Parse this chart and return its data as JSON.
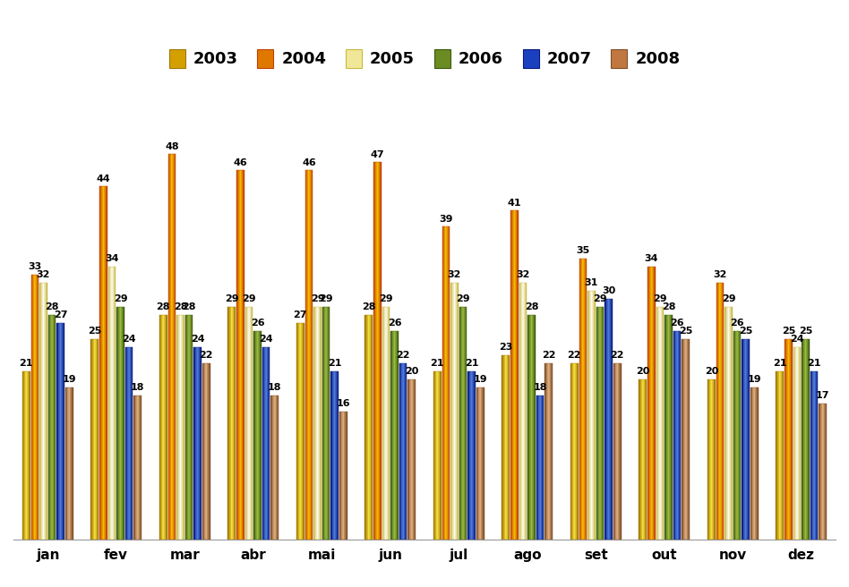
{
  "months": [
    "jan",
    "fev",
    "mar",
    "abr",
    "mai",
    "jun",
    "jul",
    "ago",
    "set",
    "out",
    "nov",
    "dez"
  ],
  "series": {
    "2003": [
      21,
      25,
      28,
      29,
      27,
      28,
      21,
      23,
      22,
      20,
      20,
      21
    ],
    "2004": [
      33,
      44,
      48,
      46,
      46,
      47,
      39,
      41,
      35,
      34,
      32,
      25
    ],
    "2005": [
      32,
      34,
      28,
      29,
      29,
      29,
      32,
      32,
      31,
      29,
      29,
      24
    ],
    "2006": [
      28,
      29,
      28,
      26,
      29,
      26,
      29,
      28,
      29,
      28,
      26,
      25
    ],
    "2007": [
      27,
      24,
      24,
      24,
      21,
      22,
      21,
      18,
      30,
      26,
      25,
      21
    ],
    "2008": [
      19,
      18,
      22,
      18,
      16,
      20,
      19,
      22,
      22,
      25,
      19,
      17
    ]
  },
  "years": [
    "2003",
    "2004",
    "2005",
    "2006",
    "2007",
    "2008"
  ],
  "year_main_colors": {
    "2003": "#D4A000",
    "2004": "#E07800",
    "2005": "#F0E898",
    "2006": "#6B8C22",
    "2007": "#1A40C0",
    "2008": "#C07840"
  },
  "year_light_colors": {
    "2003": "#F8E040",
    "2004": "#F8C000",
    "2005": "#FFFFF8",
    "2006": "#A0C040",
    "2007": "#5080E0",
    "2008": "#E0B080"
  },
  "year_dark_colors": {
    "2003": "#A07800",
    "2004": "#C04000",
    "2005": "#C8B840",
    "2006": "#3A5A10",
    "2007": "#0A1880",
    "2008": "#805028"
  },
  "legend_main_colors": {
    "2003": "#D4A000",
    "2004": "#E07800",
    "2005": "#F0E080",
    "2006": "#6B8C22",
    "2007": "#1A40C0",
    "2008": "#C07840"
  },
  "background_color": "#FFFFFF",
  "ylim": [
    0,
    55
  ],
  "label_fontsize": 8,
  "axis_fontsize": 11
}
